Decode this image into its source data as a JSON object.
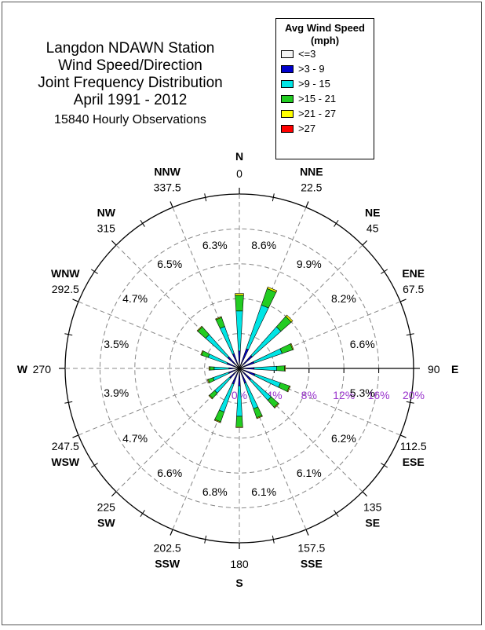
{
  "title": {
    "lines": [
      "Langdon NDAWN Station",
      "Wind Speed/Direction",
      "Joint Frequency Distribution",
      "April 1991 - 2012"
    ],
    "observations": "15840 Hourly Observations"
  },
  "legend": {
    "title_line1": "Avg Wind Speed",
    "title_line2": "(mph)",
    "items": [
      {
        "label": "<=3",
        "color": "#f4f4f4"
      },
      {
        "label": ">3 - 9",
        "color": "#0000cc"
      },
      {
        "label": ">9 - 15",
        "color": "#00e5e5"
      },
      {
        "label": ">15 - 21",
        "color": "#22cc22"
      },
      {
        "label": ">21 - 27",
        "color": "#ffff00"
      },
      {
        "label": ">27",
        "color": "#ff0000"
      }
    ]
  },
  "chart_data": {
    "type": "wind-rose",
    "speed_bins": [
      "<=3",
      ">3 - 9",
      ">9 - 15",
      ">15 - 21",
      ">21 - 27",
      ">27"
    ],
    "radial_axis": {
      "ticks": [
        "0%",
        "4%",
        "8%",
        "12%",
        "16%",
        "20%"
      ],
      "max": 20,
      "color": "#9933cc"
    },
    "directions": [
      {
        "abbr": "N",
        "degree": "0",
        "angle": 0,
        "total_label": "8.6%",
        "segments": [
          0.2,
          1.8,
          4.6,
          1.8,
          0.2,
          0
        ]
      },
      {
        "abbr": "NNE",
        "degree": "22.5",
        "angle": 22.5,
        "total_label": "9.9%",
        "segments": [
          0.2,
          2.2,
          5.3,
          2.0,
          0.2,
          0
        ]
      },
      {
        "abbr": "NE",
        "degree": "45",
        "angle": 45,
        "total_label": "8.2%",
        "segments": [
          0.2,
          1.8,
          4.4,
          1.6,
          0.2,
          0
        ]
      },
      {
        "abbr": "ENE",
        "degree": "67.5",
        "angle": 67.5,
        "total_label": "6.6%",
        "segments": [
          0.2,
          1.6,
          3.4,
          1.3,
          0.1,
          0
        ]
      },
      {
        "abbr": "E",
        "degree": "90",
        "angle": 90,
        "total_label": "5.3%",
        "segments": [
          0.2,
          1.5,
          2.6,
          0.9,
          0.1,
          0
        ]
      },
      {
        "abbr": "ESE",
        "degree": "112.5",
        "angle": 112.5,
        "total_label": "6.2%",
        "segments": [
          0.2,
          1.7,
          3.1,
          1.1,
          0.1,
          0
        ]
      },
      {
        "abbr": "SE",
        "degree": "135",
        "angle": 135,
        "total_label": "6.1%",
        "segments": [
          0.2,
          1.6,
          3.1,
          1.1,
          0.1,
          0
        ]
      },
      {
        "abbr": "SSE",
        "degree": "157.5",
        "angle": 157.5,
        "total_label": "6.1%",
        "segments": [
          0.2,
          1.6,
          3.1,
          1.1,
          0.1,
          0
        ]
      },
      {
        "abbr": "S",
        "degree": "180",
        "angle": 180,
        "total_label": "6.8%",
        "segments": [
          0.2,
          1.8,
          3.5,
          1.2,
          0.1,
          0
        ]
      },
      {
        "abbr": "SSW",
        "degree": "202.5",
        "angle": 202.5,
        "total_label": "6.6%",
        "segments": [
          0.2,
          1.7,
          3.4,
          1.2,
          0.1,
          0
        ]
      },
      {
        "abbr": "SW",
        "degree": "225",
        "angle": 225,
        "total_label": "4.7%",
        "segments": [
          0.2,
          1.3,
          2.3,
          0.8,
          0.1,
          0
        ]
      },
      {
        "abbr": "WSW",
        "degree": "247.5",
        "angle": 247.5,
        "total_label": "3.9%",
        "segments": [
          0.2,
          1.1,
          1.9,
          0.6,
          0.1,
          0
        ]
      },
      {
        "abbr": "W",
        "degree": "270",
        "angle": 270,
        "total_label": "3.5%",
        "segments": [
          0.2,
          1.0,
          1.7,
          0.5,
          0.1,
          0
        ]
      },
      {
        "abbr": "WNW",
        "degree": "292.5",
        "angle": 292.5,
        "total_label": "4.7%",
        "segments": [
          0.2,
          1.3,
          2.3,
          0.8,
          0.1,
          0
        ]
      },
      {
        "abbr": "NW",
        "degree": "315",
        "angle": 315,
        "total_label": "6.5%",
        "segments": [
          0.2,
          1.6,
          3.4,
          1.2,
          0.1,
          0
        ]
      },
      {
        "abbr": "NNW",
        "degree": "337.5",
        "angle": 337.5,
        "total_label": "6.3%",
        "segments": [
          0.2,
          1.6,
          3.3,
          1.1,
          0.1,
          0
        ]
      }
    ]
  }
}
